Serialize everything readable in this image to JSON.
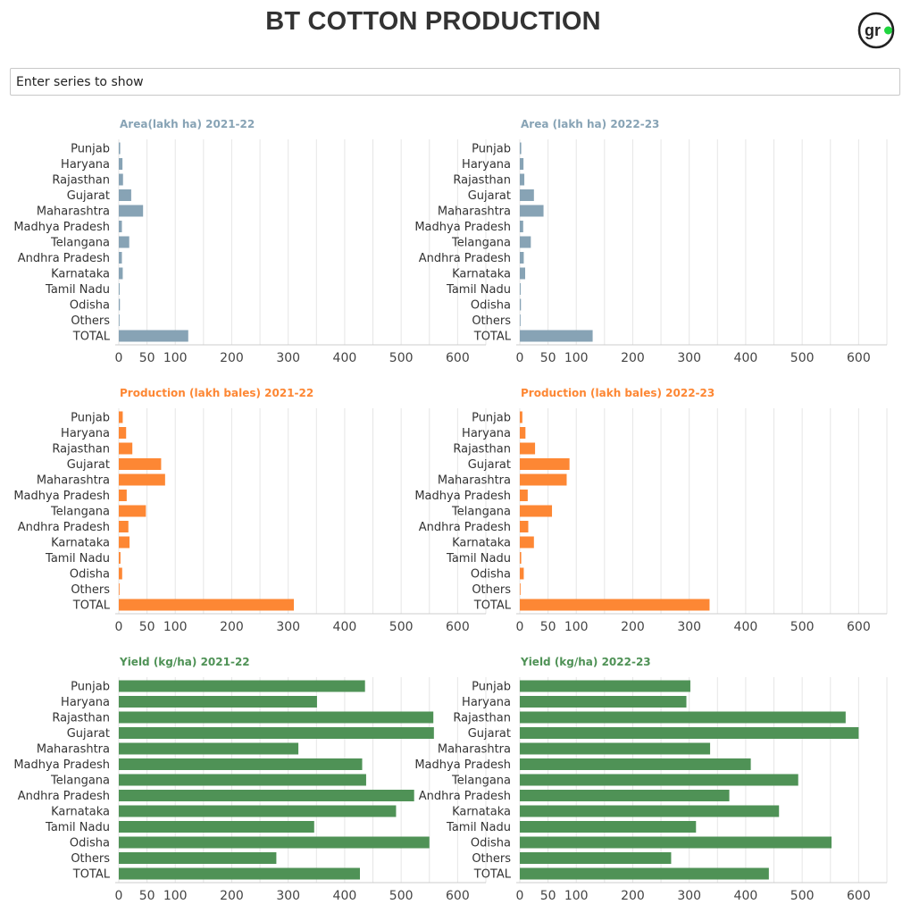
{
  "header": {
    "title": "BT COTTON PRODUCTION",
    "logo_icon": "gr-logo-icon",
    "logo_text": "gr",
    "logo_accent": "#1fd53f"
  },
  "search": {
    "placeholder": "Enter series to show",
    "value": ""
  },
  "colors": {
    "area": "#87a3b5",
    "production": "#fd8734",
    "yield": "#4f9256",
    "grid": "#e6e6e6",
    "axis": "#cccccc"
  },
  "chart_data": [
    {
      "type": "bar",
      "orientation": "horizontal",
      "title": "Area(lakh ha) 2021-22",
      "color": "#87a3b5",
      "categories": [
        "Punjab",
        "Haryana",
        "Rajasthan",
        "Gujarat",
        "Maharashtra",
        "Madhya Pradesh",
        "Telangana",
        "Andhra Pradesh",
        "Karnataka",
        "Tamil Nadu",
        "Odisha",
        "Others",
        "TOTAL"
      ],
      "values": [
        2.5,
        6.5,
        7.5,
        22,
        43,
        5.5,
        18.5,
        5.5,
        7,
        1.5,
        2,
        0.5,
        123
      ],
      "xlim": [
        0,
        650
      ],
      "xticks": [
        0,
        50,
        100,
        200,
        300,
        400,
        500,
        600
      ],
      "grid": true
    },
    {
      "type": "bar",
      "orientation": "horizontal",
      "title": "Area (lakh ha) 2022-23",
      "color": "#87a3b5",
      "categories": [
        "Punjab",
        "Haryana",
        "Rajasthan",
        "Gujarat",
        "Maharashtra",
        "Madhya Pradesh",
        "Telangana",
        "Andhra Pradesh",
        "Karnataka",
        "Tamil Nadu",
        "Odisha",
        "Others",
        "TOTAL"
      ],
      "values": [
        2.5,
        6.5,
        8,
        25,
        42,
        6,
        19.5,
        7,
        9.5,
        1.5,
        2,
        0.5,
        129
      ],
      "xlim": [
        0,
        650
      ],
      "xticks": [
        0,
        50,
        100,
        200,
        300,
        400,
        500,
        600
      ],
      "grid": true
    },
    {
      "type": "bar",
      "orientation": "horizontal",
      "title": "Production (lakh bales) 2021-22",
      "color": "#fd8734",
      "categories": [
        "Punjab",
        "Haryana",
        "Rajasthan",
        "Gujarat",
        "Maharashtra",
        "Madhya Pradesh",
        "Telangana",
        "Andhra Pradesh",
        "Karnataka",
        "Tamil Nadu",
        "Odisha",
        "Others",
        "TOTAL"
      ],
      "values": [
        7,
        13,
        24,
        75,
        82,
        14,
        48,
        17,
        19,
        3,
        6,
        0.5,
        310
      ],
      "xlim": [
        0,
        650
      ],
      "xticks": [
        0,
        50,
        100,
        200,
        300,
        400,
        500,
        600
      ],
      "grid": true
    },
    {
      "type": "bar",
      "orientation": "horizontal",
      "title": "Production (lakh bales) 2022-23",
      "color": "#fd8734",
      "categories": [
        "Punjab",
        "Haryana",
        "Rajasthan",
        "Gujarat",
        "Maharashtra",
        "Madhya Pradesh",
        "Telangana",
        "Andhra Pradesh",
        "Karnataka",
        "Tamil Nadu",
        "Odisha",
        "Others",
        "TOTAL"
      ],
      "values": [
        4.5,
        10,
        27,
        88,
        83,
        14,
        57,
        15,
        25,
        2.5,
        7,
        0.5,
        336
      ],
      "xlim": [
        0,
        650
      ],
      "xticks": [
        0,
        50,
        100,
        200,
        300,
        400,
        500,
        600
      ],
      "grid": true
    },
    {
      "type": "bar",
      "orientation": "horizontal",
      "title": "Yield (kg/ha) 2021-22",
      "color": "#4f9256",
      "categories": [
        "Punjab",
        "Haryana",
        "Rajasthan",
        "Gujarat",
        "Maharashtra",
        "Madhya Pradesh",
        "Telangana",
        "Andhra Pradesh",
        "Karnataka",
        "Tamil Nadu",
        "Odisha",
        "Others",
        "TOTAL"
      ],
      "values": [
        436,
        351,
        557,
        558,
        318,
        431,
        438,
        523,
        491,
        346,
        550,
        279,
        427
      ],
      "xlim": [
        0,
        650
      ],
      "xticks": [
        0,
        50,
        100,
        200,
        300,
        400,
        500,
        600
      ],
      "grid": true
    },
    {
      "type": "bar",
      "orientation": "horizontal",
      "title": "Yield (kg/ha) 2022-23",
      "color": "#4f9256",
      "categories": [
        "Punjab",
        "Haryana",
        "Rajasthan",
        "Gujarat",
        "Maharashtra",
        "Madhya Pradesh",
        "Telangana",
        "Andhra Pradesh",
        "Karnataka",
        "Tamil Nadu",
        "Odisha",
        "Others",
        "TOTAL"
      ],
      "values": [
        302,
        295,
        577,
        600,
        337,
        409,
        493,
        371,
        459,
        312,
        552,
        268,
        441
      ],
      "xlim": [
        0,
        650
      ],
      "xticks": [
        0,
        50,
        100,
        200,
        300,
        400,
        500,
        600
      ],
      "grid": true
    }
  ]
}
